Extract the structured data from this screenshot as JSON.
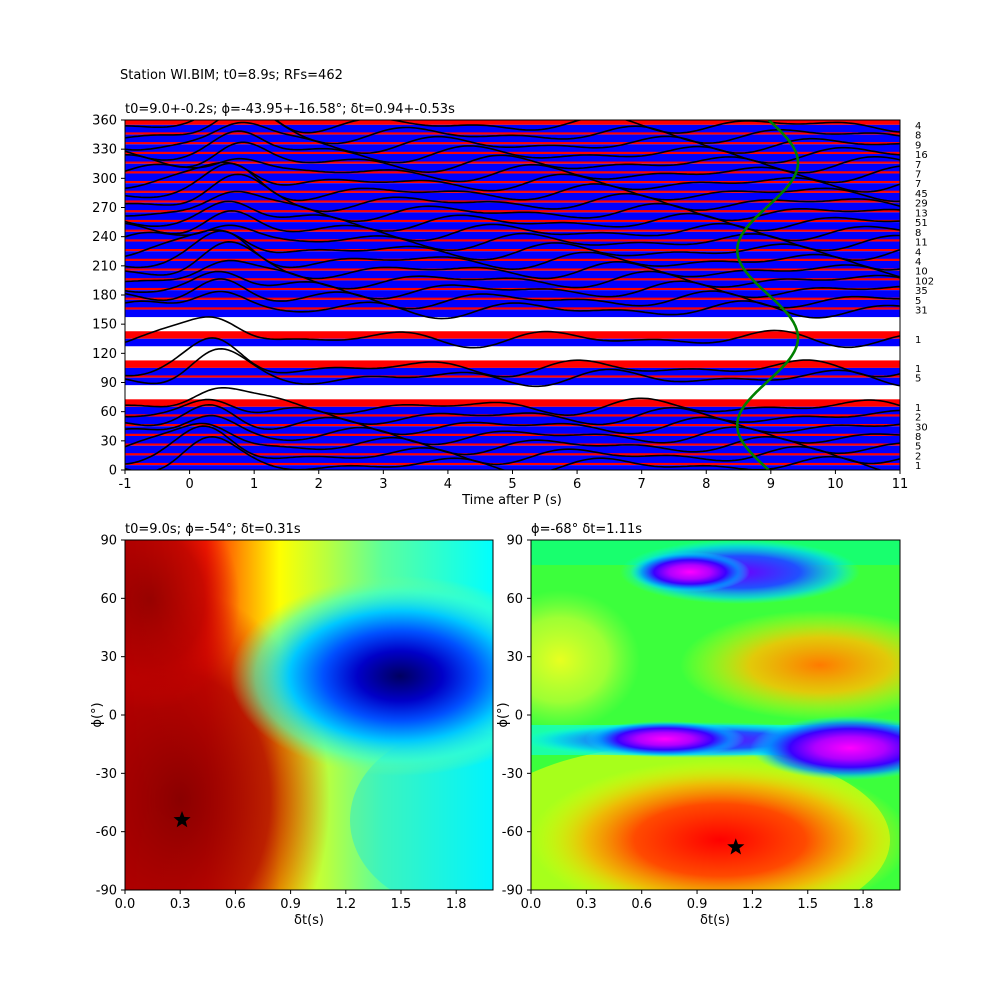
{
  "figure": {
    "suptitle": "Station WI.BIM; t0=8.9s; RFs=462"
  },
  "colors": {
    "positive_fill": "#ff0000",
    "negative_fill": "#0000ff",
    "trace_line": "#000000",
    "fit_curve": "#008000",
    "best_marker": "#000000"
  },
  "chart_data": [
    {
      "type": "line",
      "title": "t0=9.0+-0.2s; ϕ=-43.95+-16.58°; δt=0.94+-0.53s",
      "xlabel": "Time after P (s)",
      "ylabel": "",
      "xlim": [
        -1,
        11
      ],
      "ylim": [
        0,
        360
      ],
      "x_ticks": [
        -1,
        0,
        1,
        2,
        3,
        4,
        5,
        6,
        7,
        8,
        9,
        10,
        11
      ],
      "y_ticks": [
        0,
        30,
        60,
        90,
        120,
        150,
        180,
        210,
        240,
        270,
        300,
        330,
        360
      ],
      "right_labels": [
        {
          "y": 5,
          "label": "1"
        },
        {
          "y": 15,
          "label": "2"
        },
        {
          "y": 25,
          "label": "5"
        },
        {
          "y": 35,
          "label": "8"
        },
        {
          "y": 45,
          "label": "30"
        },
        {
          "y": 55,
          "label": "2"
        },
        {
          "y": 65,
          "label": "1"
        },
        {
          "y": 95,
          "label": "5"
        },
        {
          "y": 105,
          "label": "1"
        },
        {
          "y": 135,
          "label": "1"
        },
        {
          "y": 165,
          "label": "31"
        },
        {
          "y": 175,
          "label": "5"
        },
        {
          "y": 185,
          "label": "35"
        },
        {
          "y": 195,
          "label": "102"
        },
        {
          "y": 205,
          "label": "10"
        },
        {
          "y": 215,
          "label": "4"
        },
        {
          "y": 225,
          "label": "4"
        },
        {
          "y": 235,
          "label": "11"
        },
        {
          "y": 245,
          "label": "8"
        },
        {
          "y": 255,
          "label": "51"
        },
        {
          "y": 265,
          "label": "13"
        },
        {
          "y": 275,
          "label": "29"
        },
        {
          "y": 285,
          "label": "45"
        },
        {
          "y": 295,
          "label": "7"
        },
        {
          "y": 305,
          "label": "7"
        },
        {
          "y": 315,
          "label": "7"
        },
        {
          "y": 325,
          "label": "16"
        },
        {
          "y": 335,
          "label": "9"
        },
        {
          "y": 345,
          "label": "8"
        },
        {
          "y": 355,
          "label": "4"
        }
      ],
      "green_curve": {
        "center_s": 8.95,
        "amplitude_s": 0.47,
        "phase_deg": -43.95
      }
    },
    {
      "type": "heatmap",
      "title": "t0=9.0s; ϕ=-54°; δt=0.31s",
      "xlabel": "δt(s)",
      "ylabel": "ϕ(°)",
      "xlim": [
        0,
        2
      ],
      "ylim": [
        -90,
        90
      ],
      "x_ticks": [
        "0.0",
        "0.3",
        "0.6",
        "0.9",
        "1.2",
        "1.5",
        "1.8"
      ],
      "y_ticks": [
        -90,
        -60,
        -30,
        0,
        30,
        60,
        90
      ],
      "best": {
        "dt": 0.31,
        "phi": -54
      }
    },
    {
      "type": "heatmap",
      "title": "ϕ=-68° δt=1.11s",
      "xlabel": "δt(s)",
      "ylabel": "ϕ(°)",
      "xlim": [
        0,
        2
      ],
      "ylim": [
        -90,
        90
      ],
      "x_ticks": [
        "0.0",
        "0.3",
        "0.6",
        "0.9",
        "1.2",
        "1.5",
        "1.8"
      ],
      "y_ticks": [
        -90,
        -60,
        -30,
        0,
        30,
        60,
        90
      ],
      "best": {
        "dt": 1.11,
        "phi": -68
      }
    }
  ]
}
